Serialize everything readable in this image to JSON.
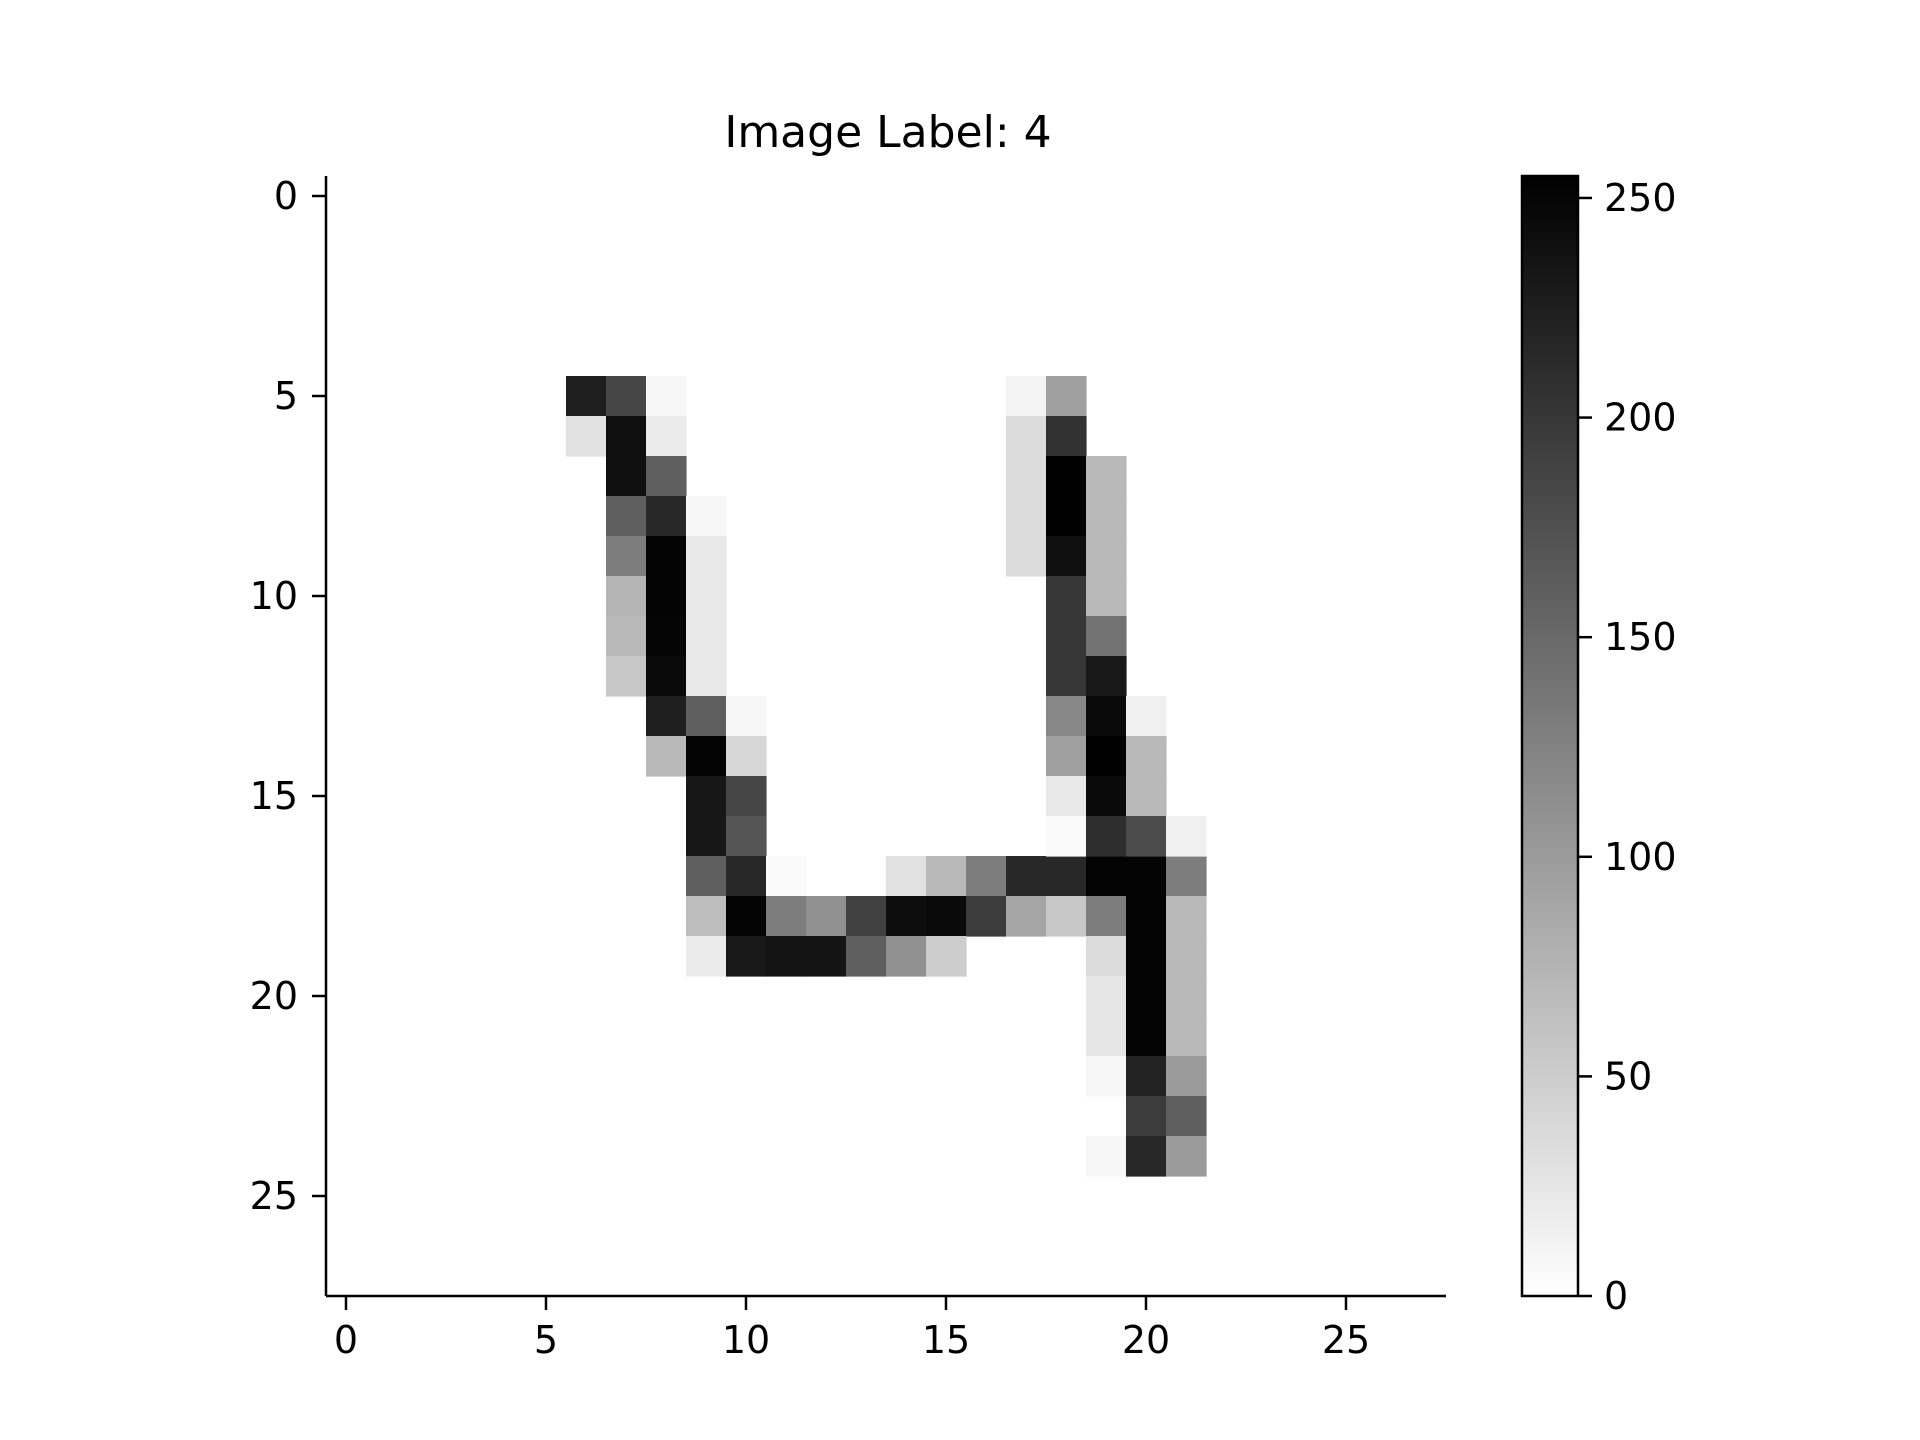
{
  "chart_data": {
    "type": "heatmap",
    "title": "Image Label: 4",
    "xlabel": "",
    "ylabel": "",
    "rows": 28,
    "cols": 28,
    "xlim": [
      -0.5,
      27.5
    ],
    "ylim": [
      27.5,
      -0.5
    ],
    "x_ticks": [
      "0",
      "5",
      "10",
      "15",
      "20",
      "25"
    ],
    "y_ticks": [
      "0",
      "5",
      "10",
      "15",
      "20",
      "25"
    ],
    "colormap": "gray_r",
    "color_min_hex": "#ffffff",
    "color_max_hex": "#000000",
    "vmin": 0,
    "vmax": 255,
    "colorbar_ticks": [
      "0",
      "50",
      "100",
      "150",
      "200",
      "250"
    ],
    "grid": false,
    "pixels": [
      [
        5,
        6,
        225
      ],
      [
        5,
        7,
        185
      ],
      [
        5,
        8,
        8
      ],
      [
        6,
        6,
        30
      ],
      [
        6,
        7,
        240
      ],
      [
        6,
        8,
        20
      ],
      [
        7,
        7,
        240
      ],
      [
        7,
        8,
        160
      ],
      [
        8,
        7,
        160
      ],
      [
        8,
        8,
        215
      ],
      [
        8,
        9,
        8
      ],
      [
        9,
        7,
        130
      ],
      [
        9,
        8,
        252
      ],
      [
        9,
        9,
        22
      ],
      [
        10,
        7,
        75
      ],
      [
        10,
        8,
        252
      ],
      [
        10,
        9,
        22
      ],
      [
        11,
        7,
        70
      ],
      [
        11,
        8,
        250
      ],
      [
        11,
        9,
        22
      ],
      [
        12,
        7,
        55
      ],
      [
        12,
        8,
        245
      ],
      [
        12,
        9,
        22
      ],
      [
        13,
        8,
        225
      ],
      [
        13,
        9,
        160
      ],
      [
        13,
        10,
        8
      ],
      [
        14,
        8,
        70
      ],
      [
        14,
        9,
        252
      ],
      [
        14,
        10,
        40
      ],
      [
        15,
        9,
        232
      ],
      [
        15,
        10,
        185
      ],
      [
        16,
        9,
        232
      ],
      [
        16,
        10,
        170
      ],
      [
        17,
        9,
        160
      ],
      [
        17,
        10,
        215
      ],
      [
        17,
        11,
        5
      ],
      [
        17,
        14,
        30
      ],
      [
        17,
        15,
        70
      ],
      [
        17,
        16,
        130
      ],
      [
        17,
        17,
        215
      ],
      [
        17,
        18,
        215
      ],
      [
        17,
        19,
        252
      ],
      [
        17,
        20,
        252
      ],
      [
        17,
        21,
        130
      ],
      [
        18,
        9,
        65
      ],
      [
        18,
        10,
        252
      ],
      [
        18,
        11,
        130
      ],
      [
        18,
        12,
        110
      ],
      [
        18,
        13,
        190
      ],
      [
        18,
        14,
        242
      ],
      [
        18,
        15,
        245
      ],
      [
        18,
        16,
        195
      ],
      [
        18,
        17,
        90
      ],
      [
        18,
        18,
        55
      ],
      [
        18,
        19,
        130
      ],
      [
        18,
        20,
        252
      ],
      [
        18,
        21,
        70
      ],
      [
        19,
        9,
        20
      ],
      [
        19,
        10,
        230
      ],
      [
        19,
        11,
        235
      ],
      [
        19,
        12,
        235
      ],
      [
        19,
        13,
        160
      ],
      [
        19,
        14,
        110
      ],
      [
        19,
        15,
        50
      ],
      [
        19,
        19,
        35
      ],
      [
        19,
        20,
        252
      ],
      [
        19,
        21,
        70
      ],
      [
        20,
        19,
        25
      ],
      [
        20,
        20,
        252
      ],
      [
        20,
        21,
        70
      ],
      [
        21,
        19,
        25
      ],
      [
        21,
        20,
        252
      ],
      [
        21,
        21,
        70
      ],
      [
        22,
        19,
        8
      ],
      [
        22,
        20,
        220
      ],
      [
        22,
        21,
        100
      ],
      [
        23,
        20,
        195
      ],
      [
        23,
        21,
        160
      ],
      [
        24,
        19,
        8
      ],
      [
        24,
        20,
        215
      ],
      [
        24,
        21,
        100
      ],
      [
        5,
        17,
        12
      ],
      [
        5,
        18,
        95
      ],
      [
        6,
        17,
        35
      ],
      [
        6,
        18,
        205
      ],
      [
        7,
        17,
        35
      ],
      [
        7,
        18,
        255
      ],
      [
        7,
        19,
        70
      ],
      [
        8,
        17,
        35
      ],
      [
        8,
        18,
        255
      ],
      [
        8,
        19,
        70
      ],
      [
        9,
        17,
        35
      ],
      [
        9,
        18,
        240
      ],
      [
        9,
        19,
        70
      ],
      [
        10,
        18,
        200
      ],
      [
        10,
        19,
        70
      ],
      [
        11,
        18,
        200
      ],
      [
        11,
        19,
        140
      ],
      [
        12,
        18,
        200
      ],
      [
        12,
        19,
        230
      ],
      [
        13,
        18,
        120
      ],
      [
        13,
        19,
        245
      ],
      [
        13,
        20,
        15
      ],
      [
        14,
        18,
        95
      ],
      [
        14,
        19,
        255
      ],
      [
        14,
        20,
        70
      ],
      [
        15,
        18,
        22
      ],
      [
        15,
        19,
        245
      ],
      [
        15,
        20,
        70
      ],
      [
        16,
        18,
        5
      ],
      [
        16,
        19,
        210
      ],
      [
        16,
        20,
        180
      ],
      [
        16,
        21,
        15
      ]
    ]
  }
}
